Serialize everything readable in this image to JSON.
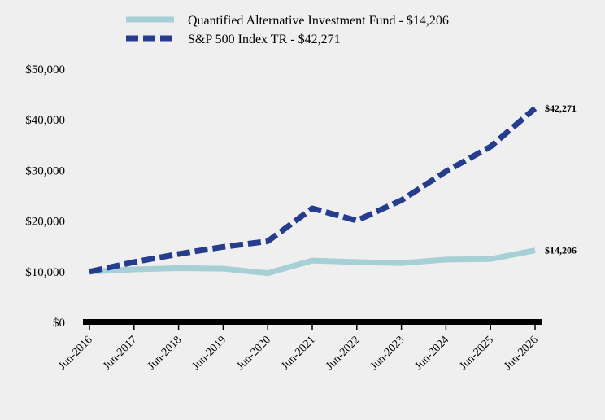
{
  "chart_data": {
    "type": "line",
    "x": [
      "Jun-2016",
      "Jun-2017",
      "Jun-2018",
      "Jun-2019",
      "Jun-2020",
      "Jun-2021",
      "Jun-2022",
      "Jun-2023",
      "Jun-2024",
      "Jun-2025",
      "Jun-2026"
    ],
    "ylim": [
      0,
      50000
    ],
    "yticks": [
      0,
      10000,
      20000,
      30000,
      40000,
      50000
    ],
    "ytick_labels": [
      "$0",
      "$10,000",
      "$20,000",
      "$30,000",
      "$40,000",
      "$50,000"
    ],
    "legend_position": "top",
    "grid": false,
    "series": [
      {
        "name": "Quantified Alternative Investment Fund - $14,206",
        "color": "#a6cfd6",
        "style": "solid",
        "end_label": "$14,206",
        "values": [
          10000,
          10450,
          10700,
          10600,
          9700,
          12200,
          11900,
          11700,
          12400,
          12500,
          14206
        ]
      },
      {
        "name": "S&P 500 Index TR - $42,271",
        "color": "#253d8c",
        "style": "dashed",
        "end_label": "$42,271",
        "values": [
          10000,
          11900,
          13500,
          14900,
          16000,
          22500,
          20100,
          24100,
          29800,
          34700,
          42271
        ]
      }
    ]
  }
}
